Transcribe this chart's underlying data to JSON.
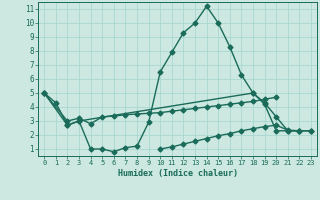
{
  "xlabel": "Humidex (Indice chaleur)",
  "xlim": [
    -0.5,
    23.5
  ],
  "ylim": [
    0.5,
    11.5
  ],
  "xticks": [
    0,
    1,
    2,
    3,
    4,
    5,
    6,
    7,
    8,
    9,
    10,
    11,
    12,
    13,
    14,
    15,
    16,
    17,
    18,
    19,
    20,
    21,
    22,
    23
  ],
  "yticks": [
    1,
    2,
    3,
    4,
    5,
    6,
    7,
    8,
    9,
    10,
    11
  ],
  "background_color": "#cce8e0",
  "grid_color": "#b0d8d0",
  "line_color": "#1a6b5a",
  "line_width": 1.0,
  "marker_size": 2.5,
  "series": [
    {
      "x": [
        0,
        1,
        2,
        3,
        4,
        5,
        6,
        7,
        8,
        9,
        10,
        11,
        12,
        13,
        14,
        15,
        16,
        17,
        18,
        19,
        20,
        21,
        22
      ],
      "y": [
        5.0,
        4.3,
        2.7,
        3.0,
        1.0,
        1.0,
        0.8,
        1.1,
        1.2,
        2.9,
        6.5,
        7.9,
        9.3,
        10.0,
        11.2,
        10.0,
        8.3,
        6.3,
        5.0,
        4.2,
        2.3,
        2.3,
        2.3
      ]
    },
    {
      "x": [
        0,
        2,
        3,
        4,
        5,
        6,
        7,
        8,
        9,
        10,
        11,
        12,
        13,
        14,
        15,
        16,
        17,
        18,
        19,
        20
      ],
      "y": [
        5.0,
        3.0,
        3.2,
        2.8,
        3.3,
        3.35,
        3.45,
        3.5,
        3.55,
        3.6,
        3.7,
        3.8,
        3.9,
        4.0,
        4.1,
        4.2,
        4.3,
        4.4,
        4.55,
        4.7
      ]
    },
    {
      "x": [
        0,
        2,
        3,
        18,
        19,
        20,
        21,
        22,
        23
      ],
      "y": [
        5.0,
        2.7,
        3.0,
        5.0,
        4.3,
        3.3,
        2.3,
        2.3,
        2.3
      ]
    },
    {
      "x": [
        10,
        11,
        12,
        13,
        14,
        15,
        16,
        17,
        18,
        19,
        20,
        21,
        22,
        23
      ],
      "y": [
        1.0,
        1.15,
        1.35,
        1.55,
        1.75,
        1.95,
        2.1,
        2.3,
        2.45,
        2.6,
        2.7,
        2.35,
        2.3,
        2.3
      ]
    }
  ]
}
